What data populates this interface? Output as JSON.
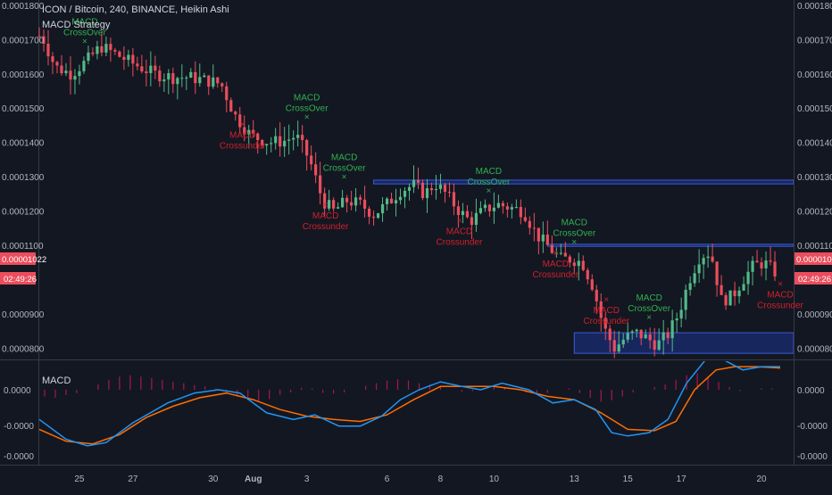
{
  "header": {
    "title": "ICON / Bitcoin, 240, BINANCE, Heikin Ashi",
    "strategy_label": "MACD Strategy",
    "macd_label": "MACD"
  },
  "colors": {
    "background": "#131722",
    "bull": "#53b987",
    "bear": "#eb4d5c",
    "signal_buy": "#2fb24e",
    "signal_sell": "#d0202b",
    "zone": "#1e3aa8",
    "macd_line": "#2196f3",
    "signal_line": "#ff6d00",
    "histogram": "#c2185b"
  },
  "price_badge": {
    "value": "0.00001022",
    "countdown": "02:49:26"
  },
  "chart_data": [
    {
      "type": "candlestick",
      "subtitle": "MACD Strategy",
      "ylim": [
        7.75e-05,
        0.000181
      ],
      "y_ticks": [
        "0.0001800",
        "0.0001700",
        "0.0001600",
        "0.0001500",
        "0.0001400",
        "0.0001300",
        "0.0001200",
        "0.0001100",
        "0.0000900",
        "0.0000800"
      ],
      "x_ticks": [
        "25",
        "27",
        "30",
        "Aug",
        "3",
        "6",
        "8",
        "10",
        "13",
        "15",
        "17",
        "20"
      ],
      "x_tick_positions": [
        24.5,
        26.5,
        29.5,
        31.0,
        33.0,
        36.0,
        38.0,
        40.0,
        43.0,
        45.0,
        47.0,
        50.0
      ],
      "xlim": [
        23.0,
        51.2
      ],
      "candles_note": "x in days (July 23 = 23, Aug 1 = 32); values are Heikin Ashi close prices",
      "candle_anchors": [
        [
          23.1,
          0.000171
        ],
        [
          23.6,
          0.000162
        ],
        [
          24.2,
          0.00016
        ],
        [
          24.8,
          0.000164
        ],
        [
          25.3,
          0.000168
        ],
        [
          25.8,
          0.000166
        ],
        [
          26.5,
          0.000163
        ],
        [
          27.3,
          0.00016
        ],
        [
          28.0,
          0.000159
        ],
        [
          28.6,
          0.000159
        ],
        [
          29.3,
          0.000158
        ],
        [
          29.8,
          0.000157
        ],
        [
          30.3,
          0.000148
        ],
        [
          30.9,
          0.000142
        ],
        [
          31.6,
          0.00014
        ],
        [
          32.2,
          0.0001405
        ],
        [
          32.6,
          0.000142
        ],
        [
          33.1,
          0.000135
        ],
        [
          33.6,
          0.000123
        ],
        [
          34.0,
          0.00012
        ],
        [
          34.5,
          0.000123
        ],
        [
          35.0,
          0.000122
        ],
        [
          35.5,
          0.000119
        ],
        [
          36.0,
          0.000122
        ],
        [
          36.5,
          0.000126
        ],
        [
          37.0,
          0.0001275
        ],
        [
          37.4,
          0.000125
        ],
        [
          37.8,
          0.000128
        ],
        [
          38.2,
          0.000125
        ],
        [
          38.7,
          0.00012
        ],
        [
          39.1,
          0.000117
        ],
        [
          39.6,
          0.00012
        ],
        [
          40.1,
          0.000122
        ],
        [
          40.6,
          0.000121
        ],
        [
          41.1,
          0.00012
        ],
        [
          41.6,
          0.000113
        ],
        [
          42.1,
          0.000109
        ],
        [
          42.5,
          0.000106
        ],
        [
          42.9,
          0.000106
        ],
        [
          43.3,
          0.000105
        ],
        [
          43.7,
          9.8e-05
        ],
        [
          44.1,
          8.6e-05
        ],
        [
          44.5,
          8e-05
        ],
        [
          44.9,
          8.3e-05
        ],
        [
          45.3,
          8.45e-05
        ],
        [
          45.7,
          8.3e-05
        ],
        [
          46.1,
          8.1e-05
        ],
        [
          46.5,
          8.4e-05
        ],
        [
          46.9,
          9e-05
        ],
        [
          47.3,
          0.0001
        ],
        [
          47.7,
          0.000107
        ],
        [
          48.1,
          0.000108
        ],
        [
          48.5,
          9.4e-05
        ],
        [
          48.9,
          9.5e-05
        ],
        [
          49.3,
          0.0001
        ],
        [
          49.7,
          0.000104
        ],
        [
          50.1,
          0.000105
        ],
        [
          50.5,
          0.0001022
        ]
      ],
      "signals": [
        {
          "line1": "MACD",
          "line2": "CrossOver",
          "x": 24.7,
          "y": 0.000166,
          "type": "buy"
        },
        {
          "line1": "MACD",
          "line2": "CrossOver",
          "x": 33.0,
          "y": 0.000144,
          "type": "buy"
        },
        {
          "line1": "MACD",
          "line2": "CrossOver",
          "x": 34.4,
          "y": 0.0001265,
          "type": "buy"
        },
        {
          "line1": "MACD",
          "line2": "CrossOver",
          "x": 39.8,
          "y": 0.0001225,
          "type": "buy"
        },
        {
          "line1": "MACD",
          "line2": "CrossOver",
          "x": 43.0,
          "y": 0.0001075,
          "type": "buy"
        },
        {
          "line1": "MACD",
          "line2": "CrossOver",
          "x": 45.8,
          "y": 8.55e-05,
          "type": "buy"
        },
        {
          "line1": "MACD",
          "line2": "Crossunder",
          "x": 30.6,
          "y": 0.000147,
          "type": "sell"
        },
        {
          "line1": "MACD",
          "line2": "Crossunder",
          "x": 33.7,
          "y": 0.0001235,
          "type": "sell"
        },
        {
          "line1": "MACD",
          "line2": "Crossunder",
          "x": 38.7,
          "y": 0.000119,
          "type": "sell"
        },
        {
          "line1": "MACD",
          "line2": "Crossunder",
          "x": 42.3,
          "y": 0.0001095,
          "type": "sell"
        },
        {
          "line1": "MACD",
          "line2": "Crossunder",
          "x": 44.2,
          "y": 9.6e-05,
          "type": "sell"
        },
        {
          "line1": "MACD",
          "line2": "Crossunder",
          "x": 50.7,
          "y": 0.0001005,
          "type": "sell"
        }
      ],
      "zones": [
        {
          "x0": 35.5,
          "x1": 51.2,
          "y0": 0.0001279,
          "y1": 0.000129
        },
        {
          "x0": 42.0,
          "x1": 51.2,
          "y0": 0.0001097,
          "y1": 0.0001103
        },
        {
          "x0": 43.0,
          "x1": 51.2,
          "y0": 7.85e-05,
          "y1": 8.45e-05
        }
      ]
    },
    {
      "type": "line",
      "title": "MACD",
      "y_ticks": [
        "0.0000",
        "-0.0000",
        "-0.0000"
      ],
      "ylim": [
        -1.0,
        1.0
      ],
      "series": [
        {
          "points": [
            [
              23.0,
              -0.45
            ],
            [
              24.0,
              -0.75
            ],
            [
              24.8,
              -0.85
            ],
            [
              25.5,
              -0.8
            ],
            [
              26.5,
              -0.5
            ],
            [
              27.8,
              -0.2
            ],
            [
              28.8,
              -0.05
            ],
            [
              29.7,
              0.0
            ],
            [
              30.5,
              -0.05
            ],
            [
              31.5,
              -0.35
            ],
            [
              32.5,
              -0.45
            ],
            [
              33.3,
              -0.38
            ],
            [
              34.2,
              -0.55
            ],
            [
              35.0,
              -0.55
            ],
            [
              35.8,
              -0.4
            ],
            [
              36.5,
              -0.15
            ],
            [
              37.2,
              0.0
            ],
            [
              38.0,
              0.12
            ],
            [
              38.8,
              0.05
            ],
            [
              39.5,
              0.0
            ],
            [
              40.3,
              0.1
            ],
            [
              41.3,
              0.0
            ],
            [
              42.2,
              -0.2
            ],
            [
              43.0,
              -0.15
            ],
            [
              43.8,
              -0.3
            ],
            [
              44.4,
              -0.65
            ],
            [
              45.0,
              -0.7
            ],
            [
              45.8,
              -0.65
            ],
            [
              46.5,
              -0.45
            ],
            [
              47.2,
              0.1
            ],
            [
              48.0,
              0.5
            ],
            [
              48.6,
              0.45
            ],
            [
              49.3,
              0.3
            ],
            [
              50.0,
              0.35
            ],
            [
              50.7,
              0.35
            ]
          ]
        },
        {
          "points": [
            [
              23.0,
              -0.6
            ],
            [
              24.0,
              -0.78
            ],
            [
              25.0,
              -0.82
            ],
            [
              26.0,
              -0.68
            ],
            [
              27.0,
              -0.42
            ],
            [
              28.0,
              -0.25
            ],
            [
              29.0,
              -0.12
            ],
            [
              30.0,
              -0.05
            ],
            [
              31.0,
              -0.15
            ],
            [
              32.0,
              -0.3
            ],
            [
              33.0,
              -0.4
            ],
            [
              34.0,
              -0.45
            ],
            [
              35.0,
              -0.48
            ],
            [
              36.0,
              -0.38
            ],
            [
              37.0,
              -0.15
            ],
            [
              38.0,
              0.05
            ],
            [
              39.0,
              0.05
            ],
            [
              40.0,
              0.05
            ],
            [
              41.0,
              0.0
            ],
            [
              42.0,
              -0.1
            ],
            [
              43.0,
              -0.15
            ],
            [
              44.0,
              -0.35
            ],
            [
              45.0,
              -0.6
            ],
            [
              46.0,
              -0.62
            ],
            [
              46.8,
              -0.48
            ],
            [
              47.5,
              0.0
            ],
            [
              48.3,
              0.3
            ],
            [
              49.0,
              0.35
            ],
            [
              49.8,
              0.35
            ],
            [
              50.7,
              0.33
            ]
          ]
        }
      ],
      "histogram_note": "columns above and below the zero line",
      "histogram": [
        [
          23.2,
          -0.1
        ],
        [
          23.6,
          -0.12
        ],
        [
          24.0,
          -0.08
        ],
        [
          24.4,
          -0.05
        ],
        [
          24.8,
          0.0
        ],
        [
          25.2,
          0.08
        ],
        [
          25.6,
          0.15
        ],
        [
          26.0,
          0.2
        ],
        [
          26.4,
          0.22
        ],
        [
          26.8,
          0.2
        ],
        [
          27.2,
          0.18
        ],
        [
          27.6,
          0.15
        ],
        [
          28.0,
          0.12
        ],
        [
          28.4,
          0.1
        ],
        [
          28.8,
          0.07
        ],
        [
          29.2,
          0.05
        ],
        [
          29.6,
          0.02
        ],
        [
          30.0,
          -0.05
        ],
        [
          30.4,
          -0.1
        ],
        [
          30.8,
          -0.16
        ],
        [
          31.2,
          -0.18
        ],
        [
          31.6,
          -0.14
        ],
        [
          32.0,
          -0.08
        ],
        [
          32.4,
          -0.04
        ],
        [
          32.8,
          0.03
        ],
        [
          33.2,
          0.02
        ],
        [
          33.6,
          -0.05
        ],
        [
          34.0,
          -0.06
        ],
        [
          34.4,
          -0.04
        ],
        [
          34.8,
          0.0
        ],
        [
          35.2,
          0.06
        ],
        [
          35.6,
          0.1
        ],
        [
          36.0,
          0.14
        ],
        [
          36.4,
          0.16
        ],
        [
          36.8,
          0.14
        ],
        [
          37.2,
          0.1
        ],
        [
          37.6,
          0.08
        ],
        [
          38.0,
          0.04
        ],
        [
          38.4,
          0.0
        ],
        [
          38.8,
          -0.03
        ],
        [
          39.2,
          -0.02
        ],
        [
          39.6,
          0.02
        ],
        [
          40.0,
          0.05
        ],
        [
          40.4,
          0.04
        ],
        [
          40.8,
          0.0
        ],
        [
          41.2,
          -0.04
        ],
        [
          41.6,
          -0.07
        ],
        [
          42.0,
          -0.05
        ],
        [
          42.4,
          0.0
        ],
        [
          42.8,
          0.02
        ],
        [
          43.2,
          -0.05
        ],
        [
          43.6,
          -0.12
        ],
        [
          44.0,
          -0.18
        ],
        [
          44.4,
          -0.16
        ],
        [
          44.8,
          -0.1
        ],
        [
          45.2,
          -0.04
        ],
        [
          45.6,
          0.0
        ],
        [
          46.0,
          0.04
        ],
        [
          46.4,
          0.08
        ],
        [
          46.8,
          0.15
        ],
        [
          47.2,
          0.22
        ],
        [
          47.6,
          0.25
        ],
        [
          48.0,
          0.2
        ],
        [
          48.4,
          0.12
        ],
        [
          48.8,
          0.04
        ],
        [
          49.2,
          -0.02
        ],
        [
          49.6,
          0.0
        ],
        [
          50.0,
          0.02
        ],
        [
          50.4,
          0.02
        ]
      ]
    }
  ]
}
